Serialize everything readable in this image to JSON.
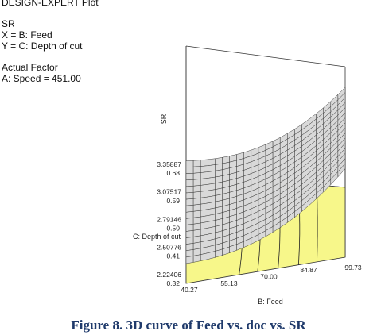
{
  "header": {
    "plot_title": "DESIGN-EXPERT Plot",
    "response": "SR",
    "x_factor": "X = B: Feed",
    "y_factor": "Y = C: Depth of cut",
    "actual_factor_heading": "Actual Factor",
    "actual_factor_value": "A: Speed = 451.00"
  },
  "caption": "Figure 8. 3D curve of Feed vs. doc vs. SR",
  "colors": {
    "surface_fill": "#d9d9d9",
    "surface_line": "#2b2b2b",
    "floor_fill": "#f7f78a",
    "frame": "#333333"
  },
  "chart_data": {
    "type": "surface",
    "title": "DESIGN-EXPERT Plot",
    "xlabel": "B: Feed",
    "ylabel": "C: Depth of cut",
    "zlabel": "SR",
    "x_ticks": [
      "40.27",
      "55.13",
      "70.00",
      "84.87",
      "99.73"
    ],
    "y_ticks": [
      "0.32",
      "0.41",
      "0.50",
      "0.59",
      "0.68"
    ],
    "z_ticks": [
      "2.22406",
      "2.50776",
      "2.79146",
      "3.07517",
      "3.35887"
    ],
    "xlim": [
      40.27,
      99.73
    ],
    "ylim": [
      0.32,
      0.68
    ],
    "zlim": [
      2.22406,
      3.35887
    ],
    "surface_min_sr": 2.35,
    "surface_max_sr": 3.33,
    "floor_contours": "yes",
    "grid": false
  }
}
